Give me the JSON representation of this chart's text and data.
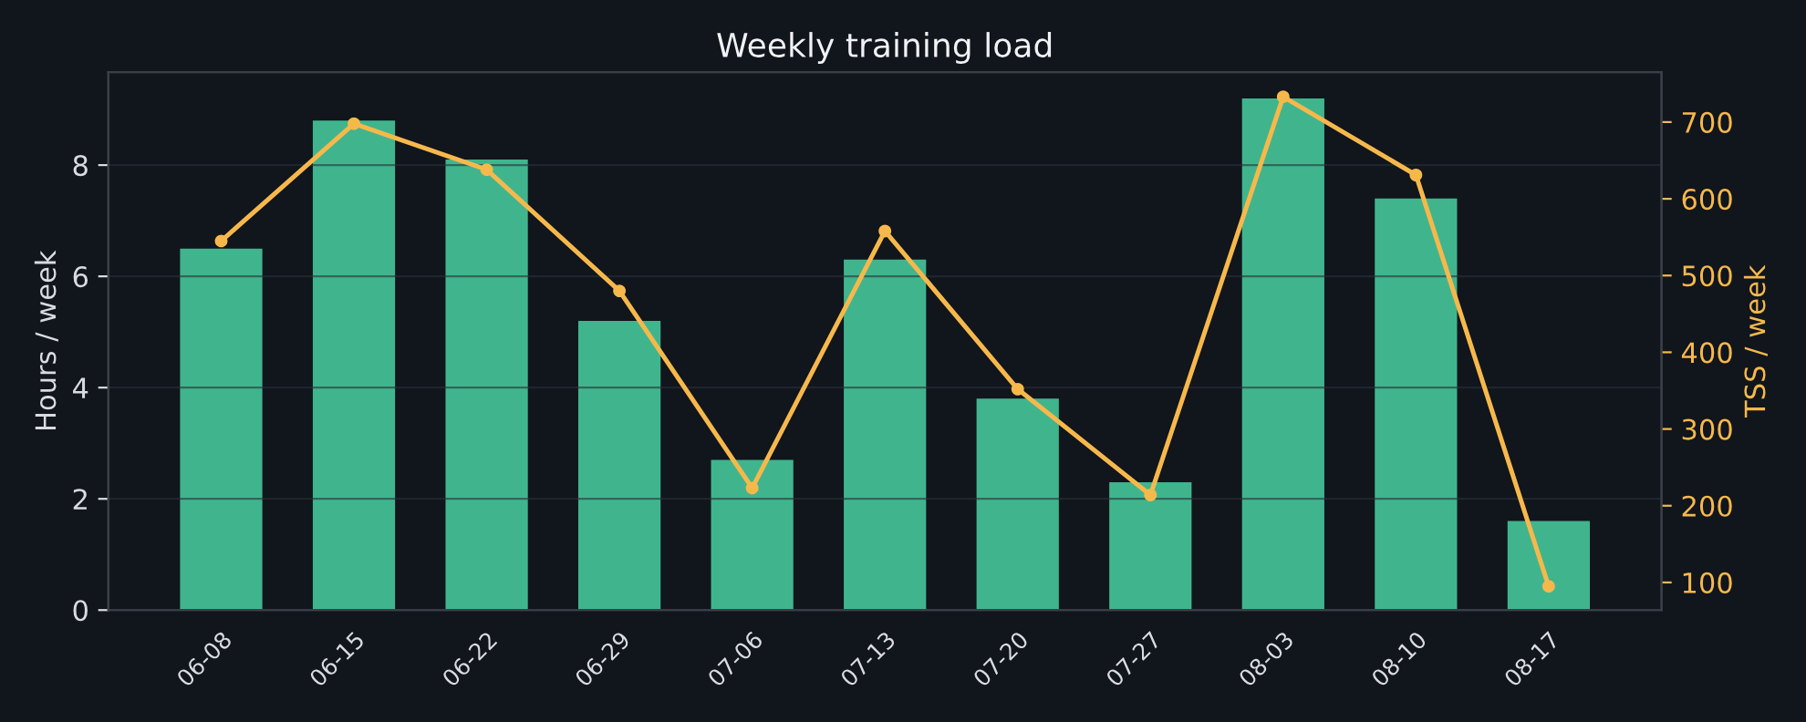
{
  "chart_data": {
    "type": "bar",
    "title": "Weekly training load",
    "ylabel": "Hours / week",
    "y2label": "TSS / week",
    "categories": [
      "06-08",
      "06-15",
      "06-22",
      "06-29",
      "07-06",
      "07-13",
      "07-20",
      "07-27",
      "08-03",
      "08-10",
      "08-17"
    ],
    "series": [
      {
        "color": "#46c79a",
        "values": [
          6.5,
          8.8,
          8.1,
          5.2,
          2.7,
          6.3,
          3.8,
          2.3,
          9.2,
          7.4,
          1.6
        ]
      },
      {
        "type": "line",
        "axis": "y2",
        "color": "#f7b84b",
        "marker": "circle",
        "values": [
          545,
          698,
          638,
          480,
          223,
          558,
          352,
          214,
          733,
          631,
          95
        ]
      }
    ],
    "ylim": [
      0,
      9.67
    ],
    "yticks": [
      0,
      2,
      4,
      6,
      8
    ],
    "y2lim": [
      64,
      765
    ],
    "y2ticks": [
      100,
      200,
      300,
      400,
      500,
      600,
      700
    ],
    "grid": "y"
  }
}
